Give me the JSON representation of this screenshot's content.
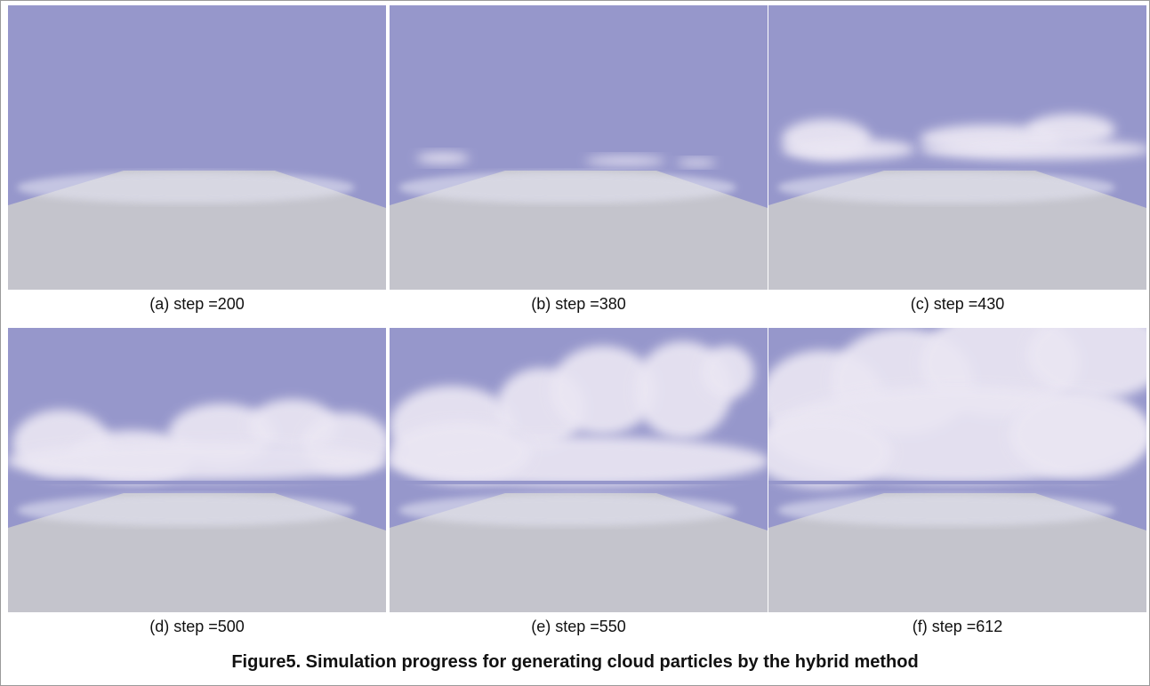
{
  "panels": [
    {
      "label": "(a) step =200"
    },
    {
      "label": "(b) step =380"
    },
    {
      "label": "(c) step =430"
    },
    {
      "label": "(d) step =500"
    },
    {
      "label": "(e) step =550"
    },
    {
      "label": "(f) step =612"
    }
  ],
  "caption": "Figure5. Simulation progress for generating cloud particles by the hybrid method"
}
